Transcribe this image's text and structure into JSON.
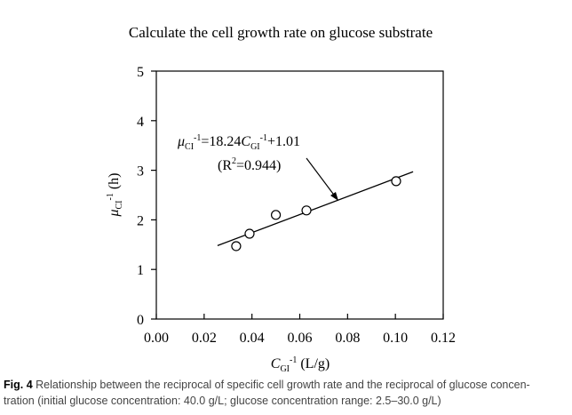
{
  "chart_data": {
    "type": "scatter",
    "title": "Calculate the cell growth rate on glucose substrate",
    "x_label": {
      "symbol": "C",
      "sub": "GI",
      "sup": "-1",
      "unit": "(L/g)"
    },
    "y_label": {
      "symbol": "μ",
      "sub": "CI",
      "sup": "-1",
      "unit": "(h)"
    },
    "annotation": {
      "equation": [
        "μ",
        "CI",
        "-1",
        "=18.24",
        "C",
        "GI",
        "-1",
        "+1.01"
      ],
      "r2": [
        "(R",
        "2",
        "=0.944)"
      ]
    },
    "x": [
      0.0334,
      0.039,
      0.05,
      0.0628,
      0.1003
    ],
    "values": [
      1.47,
      1.72,
      2.1,
      2.19,
      2.78
    ],
    "fit": {
      "x": [
        0.0256,
        0.1074
      ],
      "values": [
        1.48,
        2.97
      ]
    },
    "xlim": [
      0,
      0.12
    ],
    "ylim": [
      0,
      5
    ],
    "xticks": [
      {
        "value": 0,
        "label": "0.00"
      },
      {
        "value": 0.02,
        "label": "0.02"
      },
      {
        "value": 0.04,
        "label": "0.04"
      },
      {
        "value": 0.06,
        "label": "0.06"
      },
      {
        "value": 0.08,
        "label": "0.08"
      },
      {
        "value": 0.1,
        "label": "0.10"
      },
      {
        "value": 0.12,
        "label": "0.12"
      }
    ],
    "yticks": [
      0,
      1,
      2,
      3,
      4,
      5
    ],
    "caption": {
      "label": "Fig. 4",
      "lines": [
        "Relationship between the reciprocal of specific cell growth rate and the reciprocal of glucose concen-",
        "tration (initial glucose concentration: 40.0 g/L; glucose concentration range: 2.5–30.0 g/L)"
      ]
    }
  }
}
